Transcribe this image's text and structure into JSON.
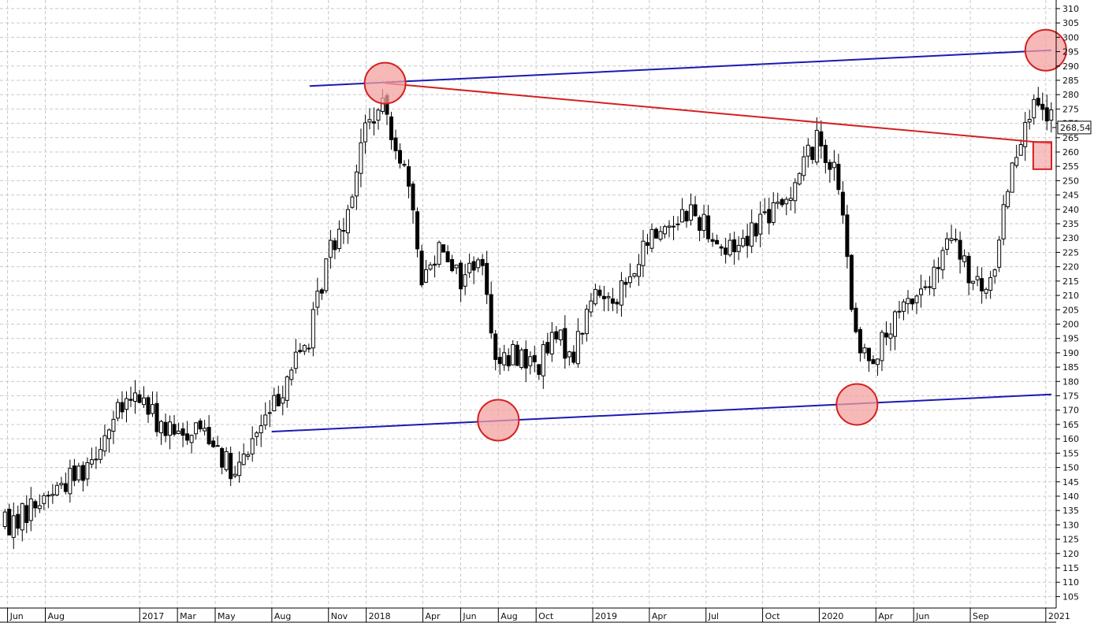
{
  "chart_data": {
    "type": "candlestick",
    "x_tick_labels": [
      "Jun",
      "Aug",
      "2017",
      "Mar",
      "May",
      "Aug",
      "Nov",
      "2018",
      "Apr",
      "Jun",
      "Aug",
      "Oct",
      "2019",
      "Apr",
      "Jul",
      "Oct",
      "2020",
      "Apr",
      "Jun",
      "Sep",
      "2021"
    ],
    "y_ticks": [
      105,
      110,
      115,
      120,
      125,
      130,
      135,
      140,
      145,
      150,
      155,
      160,
      165,
      170,
      175,
      180,
      185,
      190,
      195,
      200,
      205,
      210,
      215,
      220,
      225,
      230,
      235,
      240,
      245,
      250,
      255,
      260,
      265,
      270,
      275,
      280,
      285,
      290,
      295,
      300,
      305,
      310
    ],
    "ylim": [
      101,
      313
    ],
    "last_price": 268.54,
    "last_price_label": "268,54",
    "grid": true,
    "colors": {
      "candle": "#000000",
      "grid": "#c8c8c8",
      "support_resistance_line": "#1a1ab4",
      "neckline": "#d42020",
      "highlight_fill": "#f4a0a0",
      "highlight_stroke": "#d42020"
    },
    "anchors": [
      {
        "month": "Jun 2016",
        "price": 130
      },
      {
        "month": "Aug 2016",
        "price": 140
      },
      {
        "month": "Oct 2016",
        "price": 150
      },
      {
        "month": "Dec 2016",
        "price": 170
      },
      {
        "month": "Jan 2017",
        "price": 175
      },
      {
        "month": "Feb 2017",
        "price": 165
      },
      {
        "month": "Mar 2017",
        "price": 160
      },
      {
        "month": "Apr 2017",
        "price": 165
      },
      {
        "month": "May 2017",
        "price": 160
      },
      {
        "month": "Jun 2017",
        "price": 145
      },
      {
        "month": "Jul 2017",
        "price": 160
      },
      {
        "month": "Aug 2017",
        "price": 170
      },
      {
        "month": "Sep 2017",
        "price": 185
      },
      {
        "month": "Oct 2017",
        "price": 195
      },
      {
        "month": "Nov 2017",
        "price": 225
      },
      {
        "month": "Dec 2017",
        "price": 240
      },
      {
        "month": "Jan 2018",
        "price": 270
      },
      {
        "month": "Feb 2018",
        "price": 275
      },
      {
        "month": "Mar 2018",
        "price": 255
      },
      {
        "month": "Apr 2018",
        "price": 215
      },
      {
        "month": "May 2018",
        "price": 230
      },
      {
        "month": "Jun 2018",
        "price": 215
      },
      {
        "month": "Jul 2018",
        "price": 225
      },
      {
        "month": "Aug 2018",
        "price": 185
      },
      {
        "month": "Sep 2018",
        "price": 190
      },
      {
        "month": "Oct 2018",
        "price": 185
      },
      {
        "month": "Nov 2018",
        "price": 195
      },
      {
        "month": "Dec 2018",
        "price": 190
      },
      {
        "month": "Jan 2019",
        "price": 210
      },
      {
        "month": "Feb 2019",
        "price": 210
      },
      {
        "month": "Mar 2019",
        "price": 215
      },
      {
        "month": "Apr 2019",
        "price": 230
      },
      {
        "month": "May 2019",
        "price": 235
      },
      {
        "month": "Jun 2019",
        "price": 240
      },
      {
        "month": "Jul 2019",
        "price": 235
      },
      {
        "month": "Aug 2019",
        "price": 225
      },
      {
        "month": "Sep 2019",
        "price": 230
      },
      {
        "month": "Oct 2019",
        "price": 238
      },
      {
        "month": "Nov 2019",
        "price": 240
      },
      {
        "month": "Dec 2019",
        "price": 255
      },
      {
        "month": "Jan 2020",
        "price": 265
      },
      {
        "month": "Feb 2020",
        "price": 250
      },
      {
        "month": "Mar 2020",
        "price": 190
      },
      {
        "month": "Apr 2020",
        "price": 190
      },
      {
        "month": "May 2020",
        "price": 200
      },
      {
        "month": "Jun 2020",
        "price": 210
      },
      {
        "month": "Jul 2020",
        "price": 215
      },
      {
        "month": "Aug 2020",
        "price": 230
      },
      {
        "month": "Sep 2020",
        "price": 215
      },
      {
        "month": "Oct 2020",
        "price": 210
      },
      {
        "month": "Nov 2020",
        "price": 250
      },
      {
        "month": "Dec 2020",
        "price": 275
      },
      {
        "month": "Jan 2021",
        "price": 272
      },
      {
        "month": "Feb 2021",
        "price": 268
      }
    ],
    "trendlines": [
      {
        "name": "upper-resistance-line",
        "color": "#1a1ab4",
        "from": {
          "month": "Oct 2017",
          "price": 283
        },
        "to": {
          "month": "Feb 2021",
          "price": 295.5
        }
      },
      {
        "name": "lower-support-line",
        "color": "#1a1ab4",
        "from": {
          "month": "Aug 2017",
          "price": 162.5
        },
        "to": {
          "month": "Feb 2021",
          "price": 175.5
        }
      },
      {
        "name": "neckline",
        "color": "#d42020",
        "from": {
          "month": "Feb 2018",
          "price": 284
        },
        "to": {
          "month": "Feb 2021",
          "price": 263
        }
      }
    ],
    "annotations": [
      {
        "name": "peak-2018-circle",
        "shape": "circle",
        "month": "Feb 2018",
        "price": 284
      },
      {
        "name": "trough-2018-circle",
        "shape": "circle",
        "month": "Aug 2018",
        "price": 166.5
      },
      {
        "name": "trough-2020-circle",
        "shape": "circle",
        "month": "Mar 2020",
        "price": 172
      },
      {
        "name": "peak-2021-circle",
        "shape": "circle",
        "month": "Jan 2021",
        "price": 295.5
      },
      {
        "name": "breakout-zone-box",
        "shape": "rect",
        "month_from": "Dec 2020",
        "month_to": "Feb 2021",
        "price_from": 254,
        "price_to": 263.5
      }
    ]
  }
}
